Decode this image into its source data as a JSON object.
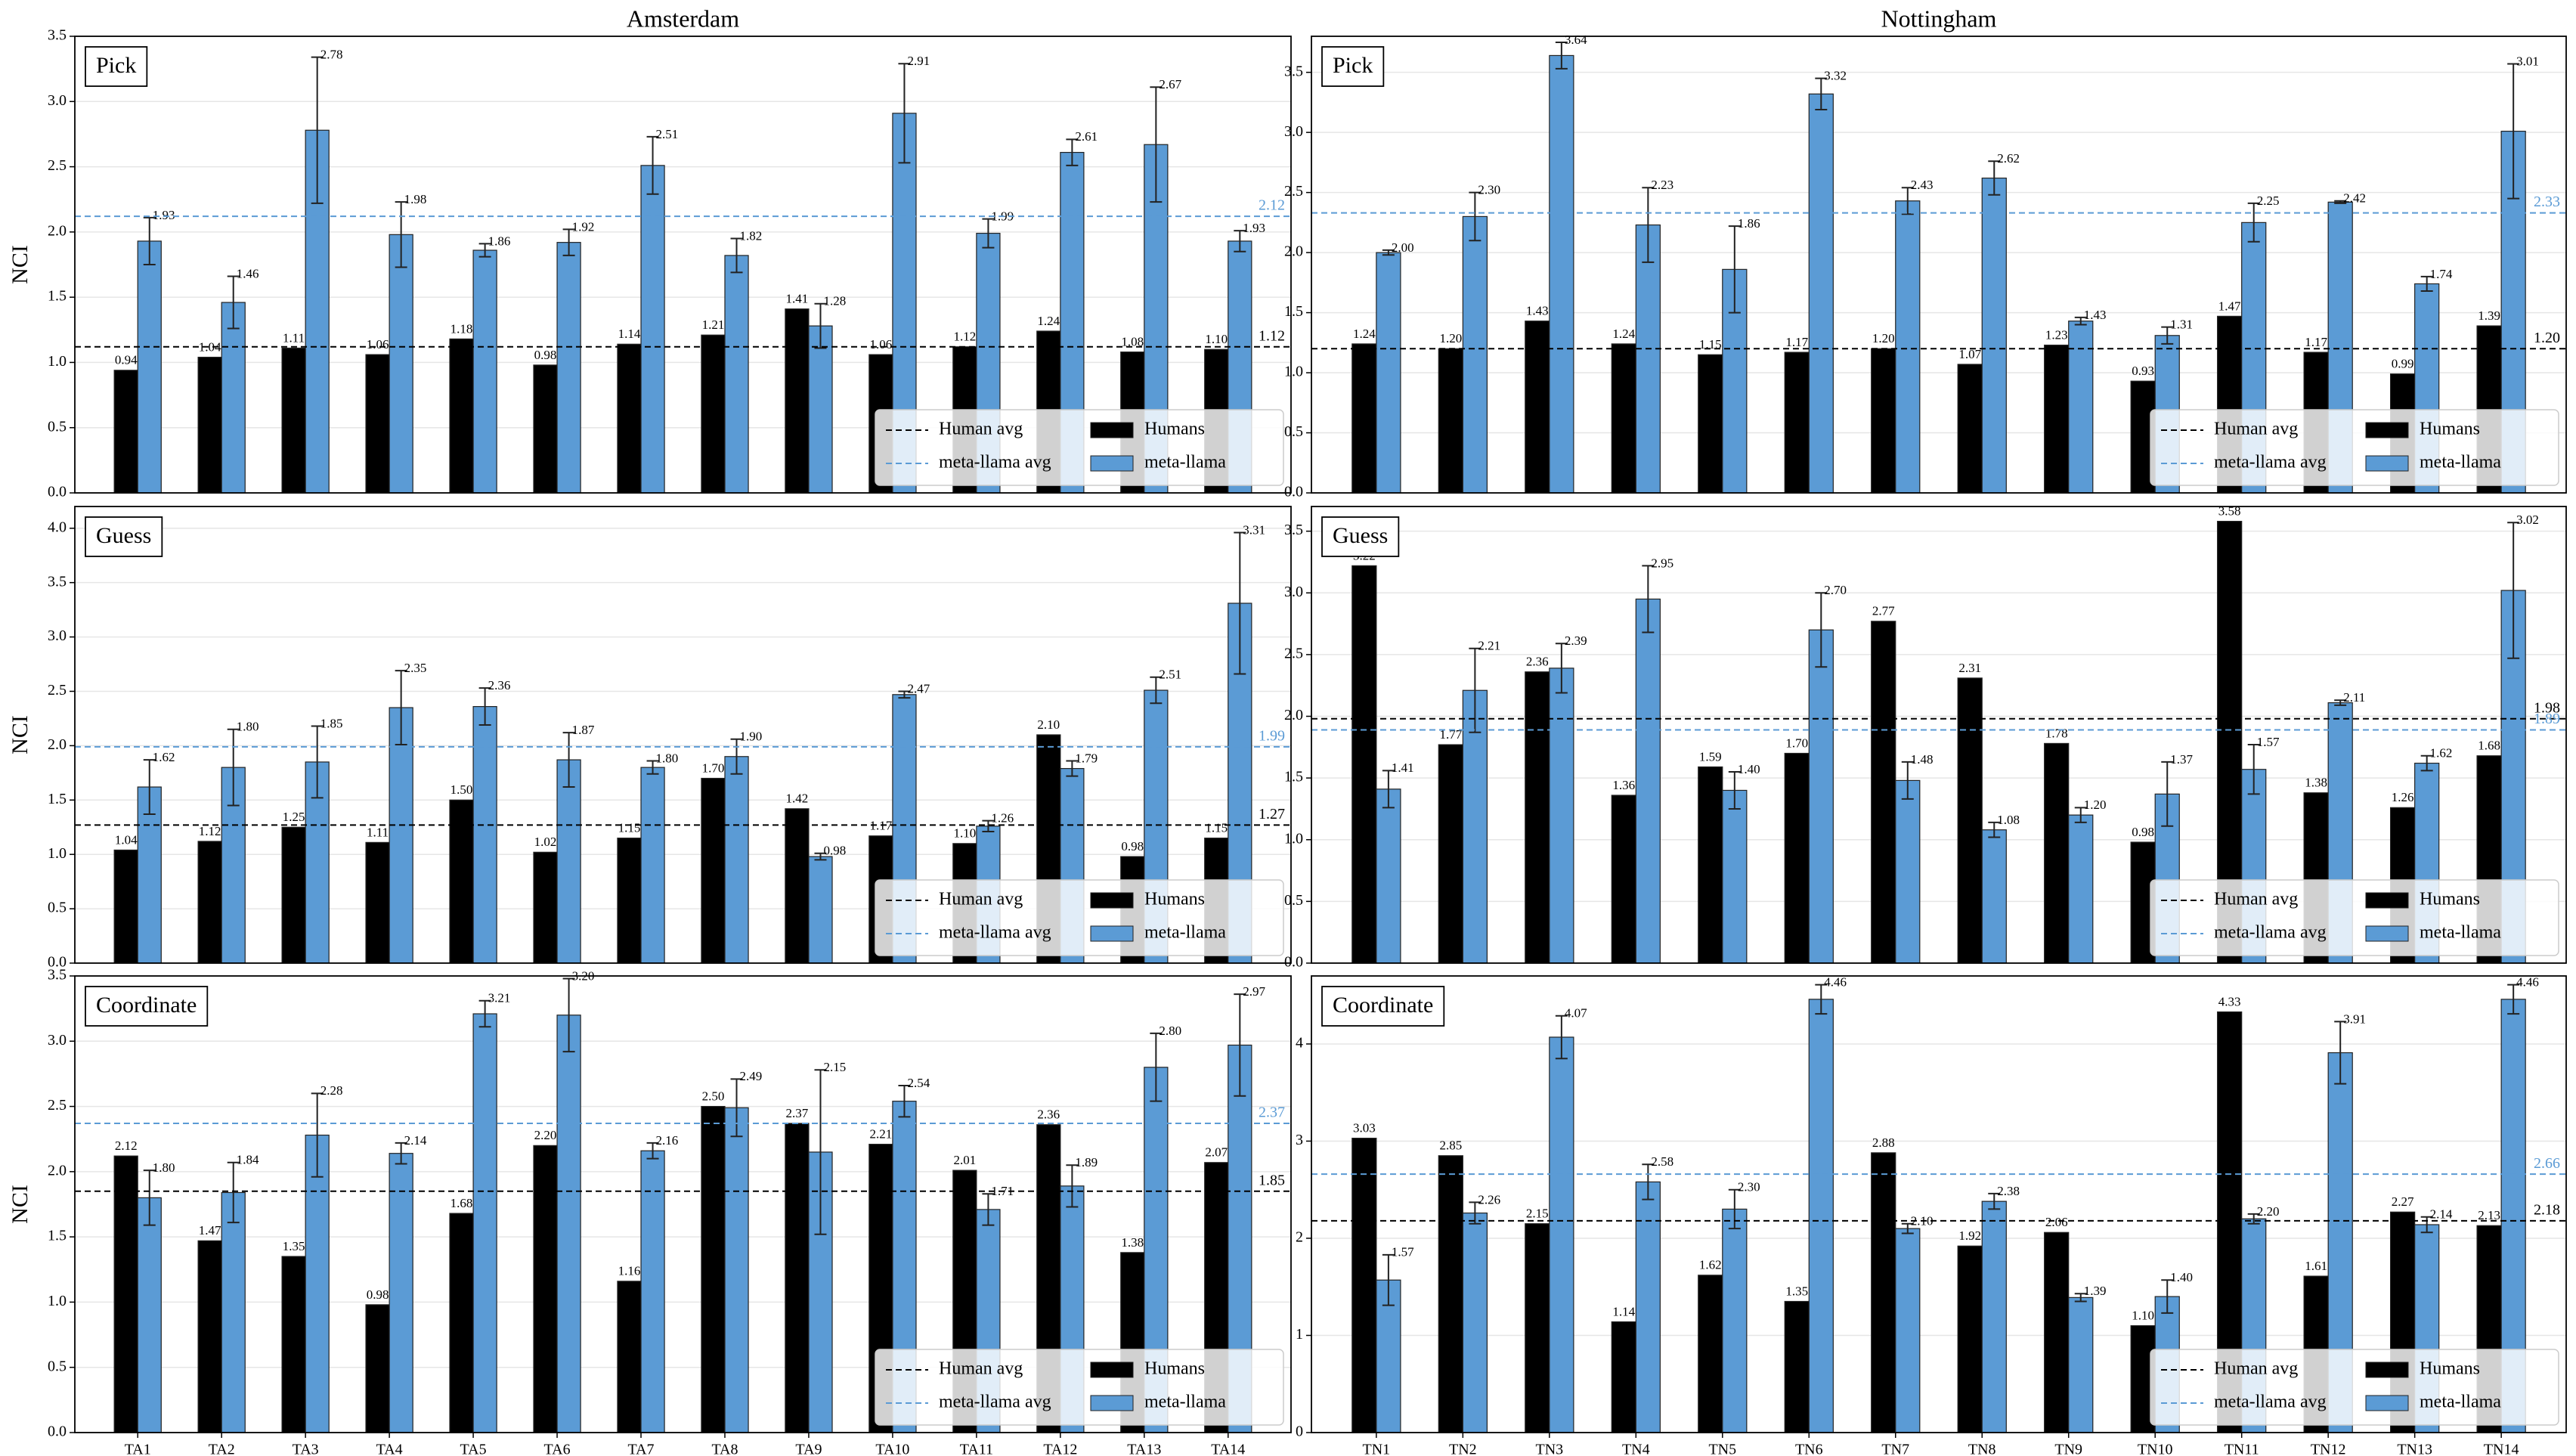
{
  "chart_data": [
    {
      "type": "bar",
      "title": "Amsterdam",
      "label": "Pick",
      "ylabel": "NCI",
      "ylim": [
        0,
        3.5
      ],
      "yticks": [
        {
          "value": 0,
          "label": "0.0"
        },
        {
          "value": 0.5,
          "label": "0.5"
        },
        {
          "value": 1,
          "label": "1.0"
        },
        {
          "value": 1.5,
          "label": "1.5"
        },
        {
          "value": 2,
          "label": "2.0"
        },
        {
          "value": 2.5,
          "label": "2.5"
        },
        {
          "value": 3,
          "label": "3.0"
        },
        {
          "value": 3.5,
          "label": "3.5"
        }
      ],
      "grid": true,
      "legend": "lower right",
      "series": [
        {
          "name": "Humans",
          "color": "#000000",
          "values": [
            0.94,
            1.04,
            1.11,
            1.06,
            1.18,
            0.98,
            1.14,
            1.21,
            1.41,
            1.06,
            1.12,
            1.24,
            1.08,
            1.1
          ],
          "value_labels": [
            "0.94",
            "1.04",
            "1.11",
            "1.06",
            "1.18",
            "0.98",
            "1.14",
            "1.21",
            "1.41",
            "1.06",
            "1.12",
            "1.24",
            "1.08",
            "1.10"
          ]
        },
        {
          "name": "meta-llama",
          "color": "#5b9bd5",
          "values": [
            1.93,
            1.46,
            2.78,
            1.98,
            1.86,
            1.92,
            2.51,
            1.82,
            1.28,
            2.91,
            1.99,
            2.61,
            2.67,
            1.93
          ],
          "errors": [
            0.18,
            0.2,
            0.56,
            0.25,
            0.05,
            0.1,
            0.22,
            0.13,
            0.17,
            0.38,
            0.11,
            0.1,
            0.44,
            0.08
          ],
          "value_labels": [
            "1.93",
            "1.46",
            "2.78",
            "1.98",
            "1.86",
            "1.92",
            "2.51",
            "1.82",
            "1.28",
            "2.91",
            "1.99",
            "2.61",
            "2.67",
            "1.93"
          ]
        }
      ],
      "avg_lines": [
        {
          "name": "Human avg",
          "color": "#000000",
          "value": 1.12,
          "label": "1.12"
        },
        {
          "name": "meta-llama avg",
          "color": "#5b9bd5",
          "value": 2.12,
          "label": "2.12"
        }
      ]
    },
    {
      "type": "bar",
      "label": "Guess",
      "ylabel": "NCI",
      "ylim": [
        0,
        4.2
      ],
      "yticks": [
        {
          "value": 0,
          "label": "0.0"
        },
        {
          "value": 0.5,
          "label": "0.5"
        },
        {
          "value": 1,
          "label": "1.0"
        },
        {
          "value": 1.5,
          "label": "1.5"
        },
        {
          "value": 2,
          "label": "2.0"
        },
        {
          "value": 2.5,
          "label": "2.5"
        },
        {
          "value": 3,
          "label": "3.0"
        },
        {
          "value": 3.5,
          "label": "3.5"
        },
        {
          "value": 4,
          "label": "4.0"
        }
      ],
      "grid": true,
      "legend": "lower right",
      "series": [
        {
          "name": "Humans",
          "color": "#000000",
          "values": [
            1.04,
            1.12,
            1.25,
            1.11,
            1.5,
            1.02,
            1.15,
            1.7,
            1.42,
            1.17,
            1.1,
            2.1,
            0.98,
            1.15
          ],
          "value_labels": [
            "1.04",
            "1.12",
            "1.25",
            "1.11",
            "1.50",
            "1.02",
            "1.15",
            "1.70",
            "1.42",
            "1.17",
            "1.10",
            "2.10",
            "0.98",
            "1.15"
          ]
        },
        {
          "name": "meta-llama",
          "color": "#5b9bd5",
          "values": [
            1.62,
            1.8,
            1.85,
            2.35,
            2.36,
            1.87,
            1.8,
            1.9,
            0.98,
            2.47,
            1.26,
            1.79,
            2.51,
            3.31
          ],
          "errors": [
            0.25,
            0.35,
            0.33,
            0.34,
            0.17,
            0.25,
            0.06,
            0.16,
            0.03,
            0.03,
            0.05,
            0.07,
            0.12,
            0.65
          ],
          "value_labels": [
            "1.62",
            "1.80",
            "1.85",
            "2.35",
            "2.36",
            "1.87",
            "1.80",
            "1.90",
            "0.98",
            "2.47",
            "1.26",
            "1.79",
            "2.51",
            "3.31"
          ]
        }
      ],
      "avg_lines": [
        {
          "name": "Human avg",
          "color": "#000000",
          "value": 1.27,
          "label": "1.27"
        },
        {
          "name": "meta-llama avg",
          "color": "#5b9bd5",
          "value": 1.99,
          "label": "1.99"
        }
      ]
    },
    {
      "type": "bar",
      "label": "Coordinate",
      "ylabel": "NCI",
      "ylim": [
        0,
        3.5
      ],
      "categories": [
        "TA1",
        "TA2",
        "TA3",
        "TA4",
        "TA5",
        "TA6",
        "TA7",
        "TA8",
        "TA9",
        "TA10",
        "TA11",
        "TA12",
        "TA13",
        "TA14"
      ],
      "yticks": [
        {
          "value": 0,
          "label": "0.0"
        },
        {
          "value": 0.5,
          "label": "0.5"
        },
        {
          "value": 1,
          "label": "1.0"
        },
        {
          "value": 1.5,
          "label": "1.5"
        },
        {
          "value": 2,
          "label": "2.0"
        },
        {
          "value": 2.5,
          "label": "2.5"
        },
        {
          "value": 3,
          "label": "3.0"
        },
        {
          "value": 3.5,
          "label": "3.5"
        }
      ],
      "grid": true,
      "legend": "lower right",
      "series": [
        {
          "name": "Humans",
          "color": "#000000",
          "values": [
            2.12,
            1.47,
            1.35,
            0.98,
            1.68,
            2.2,
            1.16,
            2.5,
            2.37,
            2.21,
            2.01,
            2.36,
            1.38,
            2.07
          ],
          "value_labels": [
            "2.12",
            "1.47",
            "1.35",
            "0.98",
            "1.68",
            "2.20",
            "1.16",
            "2.50",
            "2.37",
            "2.21",
            "2.01",
            "2.36",
            "1.38",
            "2.07"
          ]
        },
        {
          "name": "meta-llama",
          "color": "#5b9bd5",
          "values": [
            1.8,
            1.84,
            2.28,
            2.14,
            3.21,
            3.2,
            2.16,
            2.49,
            2.15,
            2.54,
            1.71,
            1.89,
            2.8,
            2.97
          ],
          "errors": [
            0.21,
            0.23,
            0.32,
            0.08,
            0.1,
            0.28,
            0.06,
            0.22,
            0.63,
            0.12,
            0.12,
            0.16,
            0.26,
            0.39
          ],
          "value_labels": [
            "1.80",
            "1.84",
            "2.28",
            "2.14",
            "3.21",
            "3.20",
            "2.16",
            "2.49",
            "2.15",
            "2.54",
            "1.71",
            "1.89",
            "2.80",
            "2.97"
          ]
        }
      ],
      "avg_lines": [
        {
          "name": "Human avg",
          "color": "#000000",
          "value": 1.85,
          "label": "1.85"
        },
        {
          "name": "meta-llama avg",
          "color": "#5b9bd5",
          "value": 2.37,
          "label": "2.37"
        }
      ]
    },
    {
      "type": "bar",
      "title": "Nottingham",
      "label": "Pick",
      "ylim": [
        0,
        3.8
      ],
      "yticks": [
        {
          "value": 0,
          "label": "0.0"
        },
        {
          "value": 0.5,
          "label": "0.5"
        },
        {
          "value": 1,
          "label": "1.0"
        },
        {
          "value": 1.5,
          "label": "1.5"
        },
        {
          "value": 2,
          "label": "2.0"
        },
        {
          "value": 2.5,
          "label": "2.5"
        },
        {
          "value": 3,
          "label": "3.0"
        },
        {
          "value": 3.5,
          "label": "3.5"
        }
      ],
      "grid": true,
      "legend": "lower right",
      "series": [
        {
          "name": "Humans",
          "color": "#000000",
          "values": [
            1.24,
            1.2,
            1.43,
            1.24,
            1.15,
            1.17,
            1.2,
            1.07,
            1.23,
            0.93,
            1.47,
            1.17,
            0.99,
            1.39
          ],
          "value_labels": [
            "1.24",
            "1.20",
            "1.43",
            "1.24",
            "1.15",
            "1.17",
            "1.20",
            "1.07",
            "1.23",
            "0.93",
            "1.47",
            "1.17",
            "0.99",
            "1.39"
          ]
        },
        {
          "name": "meta-llama",
          "color": "#5b9bd5",
          "values": [
            2.0,
            2.3,
            3.64,
            2.23,
            1.86,
            3.32,
            2.43,
            2.62,
            1.43,
            1.31,
            2.25,
            2.42,
            1.74,
            3.01
          ],
          "errors": [
            0.02,
            0.2,
            0.11,
            0.31,
            0.36,
            0.13,
            0.11,
            0.14,
            0.03,
            0.07,
            0.16,
            0.01,
            0.06,
            0.56
          ],
          "value_labels": [
            "2.00",
            "2.30",
            "3.64",
            "2.23",
            "1.86",
            "3.32",
            "2.43",
            "2.62",
            "1.43",
            "1.31",
            "2.25",
            "2.42",
            "1.74",
            "3.01"
          ]
        }
      ],
      "avg_lines": [
        {
          "name": "Human avg",
          "color": "#000000",
          "value": 1.2,
          "label": "1.20"
        },
        {
          "name": "meta-llama avg",
          "color": "#5b9bd5",
          "value": 2.33,
          "label": "2.33"
        }
      ]
    },
    {
      "type": "bar",
      "label": "Guess",
      "ylim": [
        0,
        3.7
      ],
      "yticks": [
        {
          "value": 0,
          "label": "0.0"
        },
        {
          "value": 0.5,
          "label": "0.5"
        },
        {
          "value": 1,
          "label": "1.0"
        },
        {
          "value": 1.5,
          "label": "1.5"
        },
        {
          "value": 2,
          "label": "2.0"
        },
        {
          "value": 2.5,
          "label": "2.5"
        },
        {
          "value": 3,
          "label": "3.0"
        },
        {
          "value": 3.5,
          "label": "3.5"
        }
      ],
      "grid": true,
      "legend": "lower right",
      "series": [
        {
          "name": "Humans",
          "color": "#000000",
          "values": [
            3.22,
            1.77,
            2.36,
            1.36,
            1.59,
            1.7,
            2.77,
            2.31,
            1.78,
            0.98,
            3.58,
            1.38,
            1.26,
            1.68
          ],
          "value_labels": [
            "3.22",
            "1.77",
            "2.36",
            "1.36",
            "1.59",
            "1.70",
            "2.77",
            "2.31",
            "1.78",
            "0.98",
            "3.58",
            "1.38",
            "1.26",
            "1.68"
          ]
        },
        {
          "name": "meta-llama",
          "color": "#5b9bd5",
          "values": [
            1.41,
            2.21,
            2.39,
            2.95,
            1.4,
            2.7,
            1.48,
            1.08,
            1.2,
            1.37,
            1.57,
            2.11,
            1.62,
            3.02
          ],
          "errors": [
            0.15,
            0.34,
            0.2,
            0.27,
            0.15,
            0.3,
            0.15,
            0.06,
            0.06,
            0.26,
            0.2,
            0.02,
            0.06,
            0.55
          ],
          "value_labels": [
            "1.41",
            "2.21",
            "2.39",
            "2.95",
            "1.40",
            "2.70",
            "1.48",
            "1.08",
            "1.20",
            "1.37",
            "1.57",
            "2.11",
            "1.62",
            "3.02"
          ]
        }
      ],
      "avg_lines": [
        {
          "name": "Human avg",
          "color": "#000000",
          "value": 1.98,
          "label": "1.98"
        },
        {
          "name": "meta-llama avg",
          "color": "#5b9bd5",
          "value": 1.89,
          "label": "1.89"
        }
      ]
    },
    {
      "type": "bar",
      "label": "Coordinate",
      "ylim": [
        0,
        4.7
      ],
      "categories": [
        "TN1",
        "TN2",
        "TN3",
        "TN4",
        "TN5",
        "TN6",
        "TN7",
        "TN8",
        "TN9",
        "TN10",
        "TN11",
        "TN12",
        "TN13",
        "TN14"
      ],
      "yticks": [
        0,
        1,
        2,
        3,
        4
      ],
      "grid": true,
      "legend": "lower right",
      "series": [
        {
          "name": "Humans",
          "color": "#000000",
          "values": [
            3.03,
            2.85,
            2.15,
            1.14,
            1.62,
            1.35,
            2.88,
            1.92,
            2.06,
            1.1,
            4.33,
            1.61,
            2.27,
            2.13
          ],
          "value_labels": [
            "3.03",
            "2.85",
            "2.15",
            "1.14",
            "1.62",
            "1.35",
            "2.88",
            "1.92",
            "2.06",
            "1.10",
            "4.33",
            "1.61",
            "2.27",
            "2.13"
          ]
        },
        {
          "name": "meta-llama",
          "color": "#5b9bd5",
          "values": [
            1.57,
            2.26,
            4.07,
            2.58,
            2.3,
            4.46,
            2.1,
            2.38,
            1.39,
            1.4,
            2.2,
            3.91,
            2.14,
            4.46
          ],
          "errors": [
            0.26,
            0.11,
            0.22,
            0.18,
            0.2,
            0.15,
            0.05,
            0.08,
            0.04,
            0.17,
            0.05,
            0.32,
            0.08,
            0.15
          ],
          "value_labels": [
            "1.57",
            "2.26",
            "4.07",
            "2.58",
            "2.30",
            "4.46",
            "2.10",
            "2.38",
            "1.39",
            "1.40",
            "2.20",
            "3.91",
            "2.14",
            "4.46"
          ]
        }
      ],
      "avg_lines": [
        {
          "name": "Human avg",
          "color": "#000000",
          "value": 2.18,
          "label": "2.18"
        },
        {
          "name": "meta-llama avg",
          "color": "#5b9bd5",
          "value": 2.66,
          "label": "2.66"
        }
      ]
    }
  ]
}
